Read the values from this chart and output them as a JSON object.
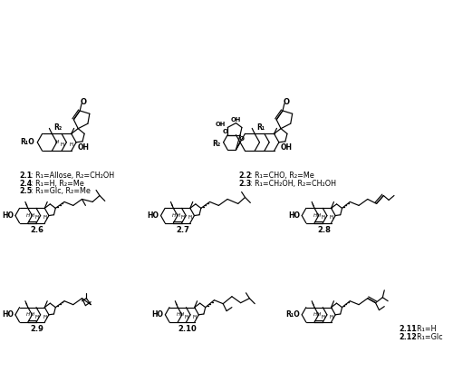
{
  "bg": "#ffffff",
  "figsize": [
    5.0,
    4.11
  ],
  "dpi": 100,
  "labels_topleft": [
    [
      "2.1",
      ": R₁=Allose, R₂=CH₂OH"
    ],
    [
      "2.4",
      ": R₁=H, R₂=Me"
    ],
    [
      "2.5",
      ": R₁=Glc, R₂=Me"
    ]
  ],
  "labels_topright": [
    [
      "2.2",
      ": R₁=CHO, R₂=Me"
    ],
    [
      "2.3",
      ": R₁=CH₂OH, R₂=CH₂OH"
    ]
  ],
  "labels_mid": [
    "2.6",
    "2.7",
    "2.8"
  ],
  "labels_bot": [
    "2.9",
    "2.10",
    "2.11: R₁=H",
    "2.12: R₁=Glc"
  ]
}
